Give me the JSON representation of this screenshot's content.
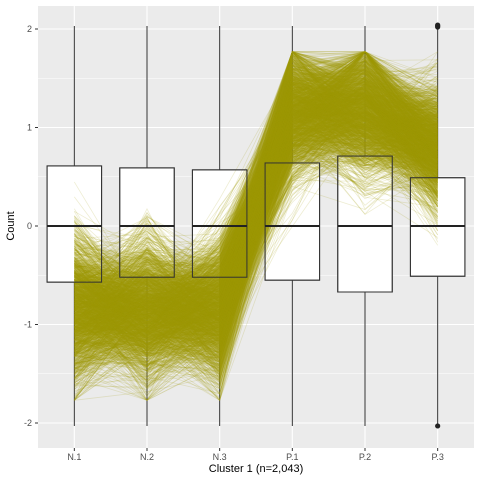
{
  "chart_data": {
    "type": "boxplot-parallel-coordinates",
    "xlabel": "Cluster 1 (n=2,043)",
    "ylabel": "Count",
    "categories": [
      "N.1",
      "N.2",
      "N.3",
      "P.1",
      "P.2",
      "P.3"
    ],
    "ylim": [
      -2.05,
      2.05
    ],
    "yticks": [
      -2,
      -1,
      0,
      1,
      2
    ],
    "grid": true,
    "boxes": [
      {
        "category": "N.1",
        "whisker_low": -2.03,
        "q1": -0.57,
        "median": 0.0,
        "q3": 0.61,
        "whisker_high": 2.03,
        "outliers": []
      },
      {
        "category": "N.2",
        "whisker_low": -2.03,
        "q1": -0.52,
        "median": 0.0,
        "q3": 0.59,
        "whisker_high": 2.03,
        "outliers": []
      },
      {
        "category": "N.3",
        "whisker_low": -2.03,
        "q1": -0.52,
        "median": 0.0,
        "q3": 0.57,
        "whisker_high": 2.03,
        "outliers": []
      },
      {
        "category": "P.1",
        "whisker_low": -2.03,
        "q1": -0.55,
        "median": 0.0,
        "q3": 0.64,
        "whisker_high": 2.03,
        "outliers": []
      },
      {
        "category": "P.2",
        "whisker_low": -2.03,
        "q1": -0.67,
        "median": 0.0,
        "q3": 0.71,
        "whisker_high": 2.03,
        "outliers": []
      },
      {
        "category": "P.3",
        "whisker_low": -2.02,
        "q1": -0.51,
        "median": 0.0,
        "q3": 0.49,
        "whisker_high": 2.02,
        "outliers": [
          2.02,
          2.03,
          2.04,
          -2.03
        ]
      }
    ],
    "profiles": {
      "count": 2043,
      "mean": [
        -0.85,
        -0.85,
        -0.85,
        1.15,
        1.2,
        0.8
      ],
      "sd": [
        0.35,
        0.33,
        0.32,
        0.3,
        0.32,
        0.28
      ]
    },
    "colors": {
      "panel_bg": "#ebebeb",
      "grid": "#ffffff",
      "line": "#9e9a0a",
      "box_fill": "#ffffff",
      "box_stroke": "#333333"
    }
  }
}
